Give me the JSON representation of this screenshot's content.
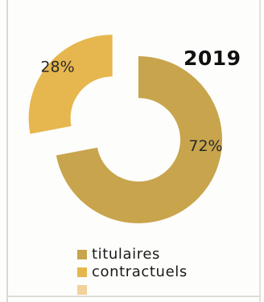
{
  "chart_data": {
    "type": "pie",
    "style": "donut",
    "title": "2019",
    "series": [
      {
        "name": "titulaires",
        "value": 72,
        "label": "72%",
        "color": "#c8a44c"
      },
      {
        "name": "contractuels",
        "value": 28,
        "label": "28%",
        "color": "#e6b74e"
      },
      {
        "name": "",
        "value": 0,
        "label": "",
        "color": "#f2d19a"
      }
    ],
    "legend_position": "bottom",
    "exploded_slice": "contractuels"
  }
}
